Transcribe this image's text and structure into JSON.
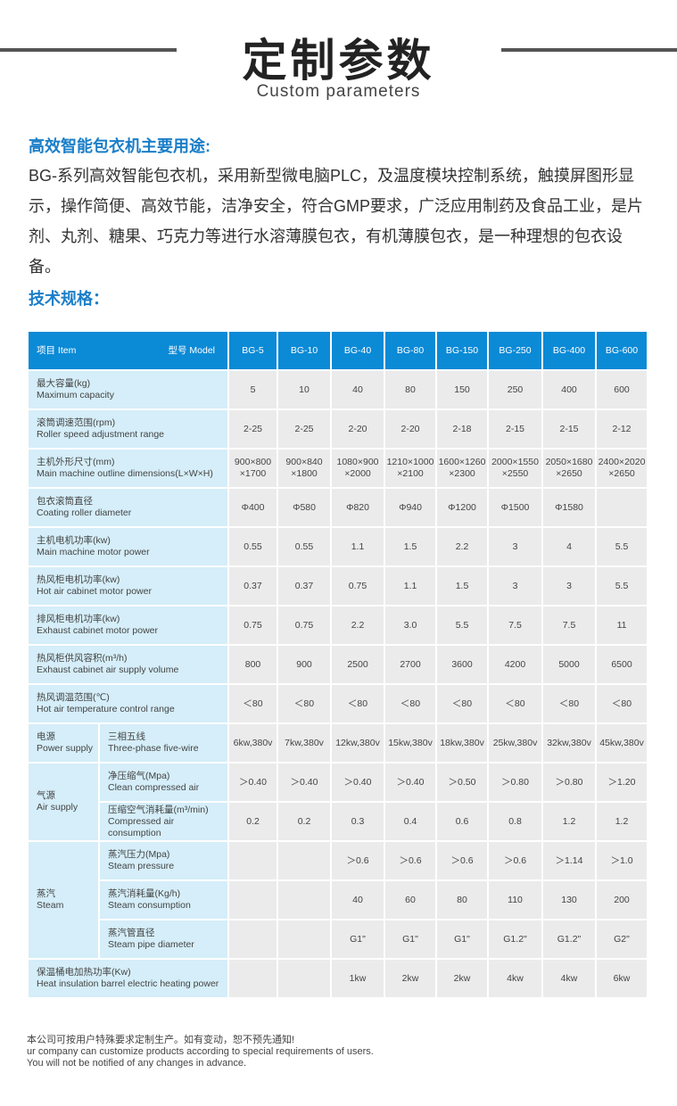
{
  "header": {
    "title": "定制参数",
    "subtitle": "Custom parameters"
  },
  "intro": {
    "heading": "高效智能包衣机主要用途:",
    "text": "BG-系列高效智能包衣机，采用新型微电脑PLC，及温度模块控制系统，触摸屏图形显示，操作简便、高效节能，洁净安全，符合GMP要求，广泛应用制药及食品工业，是片剂、丸剂、糖果、巧克力等进行水溶薄膜包衣，有机薄膜包衣，是一种理想的包衣设备。",
    "spec_heading": "技术规格："
  },
  "table": {
    "item_label": "项目 Item",
    "model_label": "型号 Model",
    "models": [
      "BG-5",
      "BG-10",
      "BG-40",
      "BG-80",
      "BG-150",
      "BG-250",
      "BG-400",
      "BG-600"
    ],
    "rows": [
      {
        "cn": "最大容量(kg)",
        "en": "Maximum capacity",
        "values": [
          "5",
          "10",
          "40",
          "80",
          "150",
          "250",
          "400",
          "600"
        ]
      },
      {
        "cn": "滚筒调速范围(rpm)",
        "en": "Roller speed adjustment range",
        "values": [
          "2-25",
          "2-25",
          "2-20",
          "2-20",
          "2-18",
          "2-15",
          "2-15",
          "2-12"
        ]
      },
      {
        "cn": "主机外形尺寸(mm)",
        "en": "Main machine outline dimensions(L×W×H)",
        "values": [
          "900×800 ×1700",
          "900×840 ×1800",
          "1080×900 ×2000",
          "1210×1000 ×2100",
          "1600×1260 ×2300",
          "2000×1550 ×2550",
          "2050×1680 ×2650",
          "2400×2020 ×2650"
        ]
      },
      {
        "cn": "包衣滚筒直径",
        "en": "Coating roller diameter",
        "values": [
          "Φ400",
          "Φ580",
          "Φ820",
          "Φ940",
          "Φ1200",
          "Φ1500",
          "Φ1580",
          ""
        ]
      },
      {
        "cn": "主机电机功率(kw)",
        "en": "Main machine motor power",
        "values": [
          "0.55",
          "0.55",
          "1.1",
          "1.5",
          "2.2",
          "3",
          "4",
          "5.5"
        ]
      },
      {
        "cn": "热风柜电机功率(kw)",
        "en": "Hot air cabinet motor power",
        "values": [
          "0.37",
          "0.37",
          "0.75",
          "1.1",
          "1.5",
          "3",
          "3",
          "5.5"
        ]
      },
      {
        "cn": "排风柜电机功率(kw)",
        "en": "Exhaust cabinet motor power",
        "values": [
          "0.75",
          "0.75",
          "2.2",
          "3.0",
          "5.5",
          "7.5",
          "7.5",
          "11"
        ]
      },
      {
        "cn": "热风柜供风容积(m³/h)",
        "en": "Exhaust cabinet air supply volume",
        "values": [
          "800",
          "900",
          "2500",
          "2700",
          "3600",
          "4200",
          "5000",
          "6500"
        ]
      },
      {
        "cn": "热风调温范围(℃)",
        "en": "Hot air temperature control range",
        "values": [
          "＜80",
          "＜80",
          "＜80",
          "＜80",
          "＜80",
          "＜80",
          "＜80",
          "＜80"
        ]
      }
    ],
    "groups": [
      {
        "cn": "电源",
        "en": "Power supply",
        "rows": [
          {
            "cn": "三相五线",
            "en": "Three-phase five-wire",
            "values": [
              "6kw,380v",
              "7kw,380v",
              "12kw,380v",
              "15kw,380v",
              "18kw,380v",
              "25kw,380v",
              "32kw,380v",
              "45kw,380v"
            ]
          }
        ]
      },
      {
        "cn": "气源",
        "en": "Air supply",
        "rows": [
          {
            "cn": "净压缩气(Mpa)",
            "en": "Clean compressed air",
            "values": [
              "＞0.40",
              "＞0.40",
              "＞0.40",
              "＞0.40",
              "＞0.50",
              "＞0.80",
              "＞0.80",
              "＞1.20"
            ]
          },
          {
            "cn": "压缩空气消耗量(m³/min)",
            "en": "Compressed air consumption",
            "values": [
              "0.2",
              "0.2",
              "0.3",
              "0.4",
              "0.6",
              "0.8",
              "1.2",
              "1.2"
            ]
          }
        ]
      },
      {
        "cn": "蒸汽",
        "en": "Steam",
        "rows": [
          {
            "cn": "蒸汽压力(Mpa)",
            "en": "Steam pressure",
            "values": [
              "",
              "",
              "＞0.6",
              "＞0.6",
              "＞0.6",
              "＞0.6",
              "＞1.14",
              "＞1.0"
            ]
          },
          {
            "cn": "蒸汽消耗量(Kg/h)",
            "en": "Steam consumption",
            "values": [
              "",
              "",
              "40",
              "60",
              "80",
              "110",
              "130",
              "200"
            ]
          },
          {
            "cn": "蒸汽管直径",
            "en": "Steam pipe diameter",
            "values": [
              "",
              "",
              "G1\"",
              "G1\"",
              "G1\"",
              "G1.2\"",
              "G1.2\"",
              "G2\""
            ]
          }
        ]
      }
    ],
    "last": {
      "cn": "保温桶电加热功率(Kw)",
      "en": "Heat insulation barrel electric heating power",
      "values": [
        "",
        "",
        "1kw",
        "2kw",
        "2kw",
        "4kw",
        "4kw",
        "6kw"
      ]
    }
  },
  "footer": {
    "line1": "本公司可按用户特殊要求定制生产。如有变动，恕不预先通知!",
    "line2": "ur company can customize products according to special requirements of users.",
    "line3": "You will not be notified of any changes in advance."
  },
  "colors": {
    "header_blue": "#0b8ad6",
    "label_bg": "#d5eef9",
    "cell_bg": "#ebebeb",
    "heading_blue": "#1a7ec8"
  }
}
